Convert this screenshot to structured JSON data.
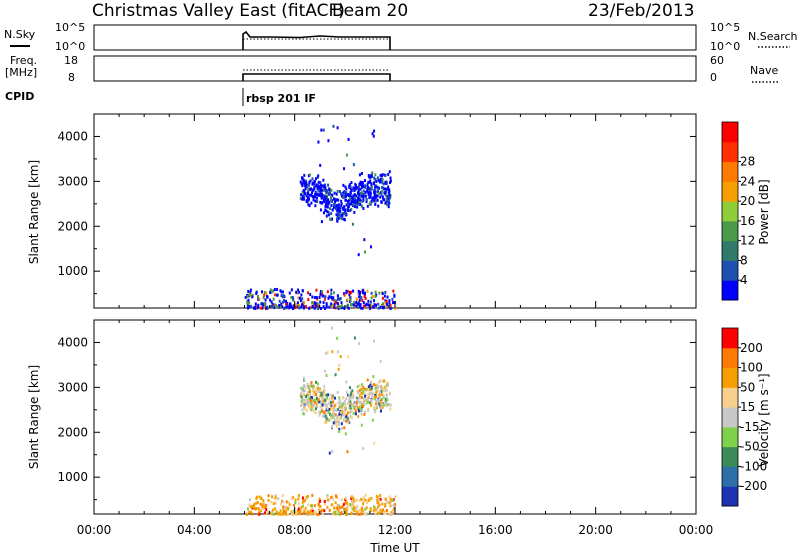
{
  "header": {
    "title": "Christmas Valley East (fitACF)",
    "beam": "Beam 20",
    "date": "23/Feb/2013"
  },
  "control_panel": {
    "nsky_label": "N.Sky",
    "nsearch_label": "N.Search",
    "freq_label_line1": "Freq.",
    "freq_label_line2": "[MHz]",
    "nave_label": "Nave",
    "cpid_label": "CPID",
    "cpid_text": "rbsp 201 IF",
    "noise_left_ticks": [
      "10^5",
      "10^0"
    ],
    "noise_right_ticks": [
      "10^5",
      "10^0"
    ],
    "freq_left_ticks": [
      "18",
      "8"
    ],
    "freq_right_ticks": [
      "60",
      "0"
    ]
  },
  "chart_data": [
    {
      "type": "scatter",
      "panel": "power",
      "ylabel": "Slant Range [km]",
      "xlabel": "Time UT",
      "xlim": [
        "00:00",
        "24:00"
      ],
      "ylim": [
        180,
        4500
      ],
      "yticks": [
        1000,
        2000,
        3000,
        4000
      ],
      "xticks": [
        "00:00",
        "04:00",
        "08:00",
        "12:00",
        "16:00",
        "20:00",
        "00:00"
      ],
      "data_window": [
        "06:00",
        "12:00"
      ],
      "colorbar": {
        "label": "Power [dB]",
        "ticks": [
          4,
          8,
          12,
          16,
          20,
          24,
          28
        ],
        "colors": [
          "#0000ff",
          "#1f4fb0",
          "#2f7a6a",
          "#4a9a4a",
          "#8fce3a",
          "#f5a000",
          "#ff7a00",
          "#ff3000",
          "#ff0000"
        ]
      },
      "clusters": [
        {
          "time_start": 8.3,
          "time_end": 11.8,
          "range_min": 2450,
          "range_max": 3600,
          "description": "main scatter, mostly low power"
        },
        {
          "time_start": 6.0,
          "time_end": 12.0,
          "range_min": 180,
          "range_max": 600,
          "description": "near-range ground/E-region scatter"
        }
      ]
    },
    {
      "type": "scatter",
      "panel": "velocity",
      "ylabel": "Slant Range [km]",
      "xlabel": "Time UT",
      "xlim": [
        "00:00",
        "24:00"
      ],
      "ylim": [
        180,
        4500
      ],
      "yticks": [
        1000,
        2000,
        3000,
        4000
      ],
      "xticks": [
        "00:00",
        "04:00",
        "08:00",
        "12:00",
        "16:00",
        "20:00",
        "00:00"
      ],
      "colorbar": {
        "label": "Velocity [m s⁻¹]",
        "ticks": [
          200,
          100,
          50,
          15,
          -15,
          -50,
          -100,
          -200
        ],
        "colors": [
          "#1c34b4",
          "#2f6fa8",
          "#3a8a5a",
          "#7fd04a",
          "#c8c8c8",
          "#f7d090",
          "#f5a000",
          "#ff7a00",
          "#ff0000"
        ]
      }
    }
  ],
  "styles": {
    "axis_color": "#000000",
    "background": "#ffffff"
  }
}
